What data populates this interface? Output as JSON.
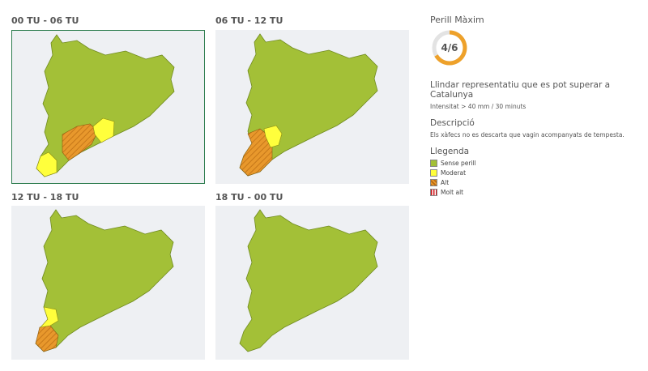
{
  "panels": [
    {
      "title": "00 TU - 06 TU"
    },
    {
      "title": "06 TU - 12 TU"
    },
    {
      "title": "12 TU - 18 TU"
    },
    {
      "title": "18 TU - 00 TU"
    }
  ],
  "sidebar": {
    "max_danger_title": "Perill Màxim",
    "max_danger_level": "4/6",
    "threshold_title": "Llindar representatiu que es pot superar a Catalunya",
    "threshold_detail": "Intensitat > 40 mm / 30 minuts",
    "description_title": "Descripció",
    "description_text": "Els xàfecs no es descarta que vagin acompanyats de tempesta.",
    "legend_title": "Llegenda",
    "legend": [
      {
        "label": "Sense perill"
      },
      {
        "label": "Moderat"
      },
      {
        "label": "Alt"
      },
      {
        "label": "Molt alt"
      }
    ]
  }
}
